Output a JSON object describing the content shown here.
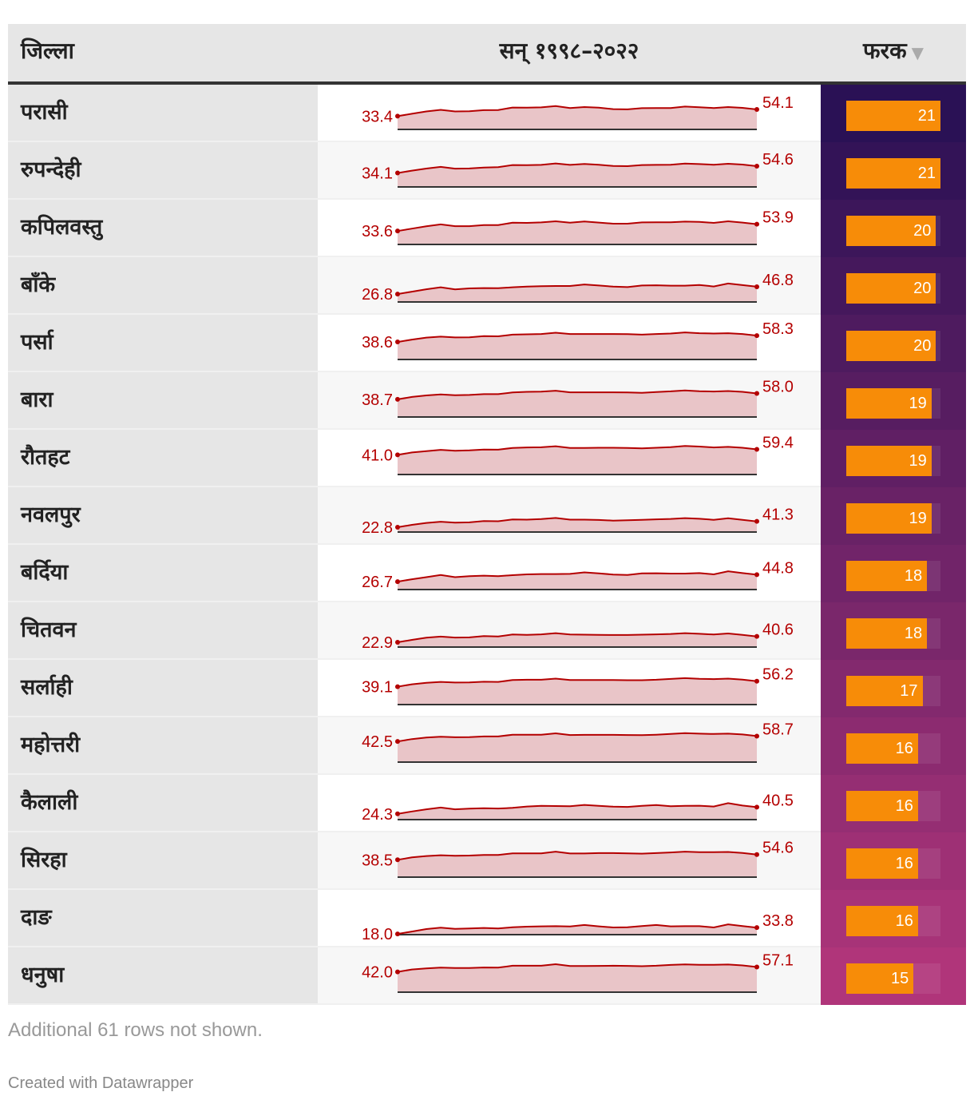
{
  "header": {
    "district": "जिल्ला",
    "years": "सन् १९९८–२०२२",
    "diff": "फरक",
    "sort_icon": "▼"
  },
  "colors": {
    "spark_line": "#b40000",
    "spark_fill": "#e9c5c8",
    "bar": "#f78c08",
    "gradient_top": "#2a1155",
    "gradient_bottom": "#b0357a"
  },
  "chart_data": {
    "type": "table",
    "columns": [
      "जिल्ला",
      "सन् १९९८–२०२२",
      "फरक"
    ],
    "year_range": [
      1998,
      2022
    ],
    "rows": [
      {
        "district": "परासी",
        "start": "33.4",
        "end": "54.1",
        "diff": 21,
        "series": [
          33.4,
          34.2,
          37.0,
          39.0,
          37.0,
          37.2,
          38.6,
          38.8,
          41.8,
          41.6,
          42.0,
          43.6,
          41.2,
          42.4,
          41.6,
          39.8,
          39.6,
          41.0,
          41.2,
          41.2,
          43.0,
          42.2,
          41.2,
          42.4,
          41.4,
          54.1
        ]
      },
      {
        "district": "रुपन्देही",
        "start": "34.1",
        "end": "54.6",
        "diff": 21,
        "series": [
          34.1,
          35.0,
          37.5,
          39.6,
          37.4,
          37.6,
          38.8,
          39.2,
          41.8,
          41.6,
          42.0,
          43.8,
          42.0,
          43.2,
          42.2,
          40.6,
          40.4,
          41.8,
          42.0,
          42.2,
          43.6,
          43.0,
          42.2,
          43.4,
          42.4,
          54.6
        ]
      },
      {
        "district": "कपिलवस्तु",
        "start": "33.6",
        "end": "53.9",
        "diff": 20,
        "series": [
          33.6,
          34.4,
          37.2,
          39.6,
          37.4,
          37.4,
          38.8,
          38.8,
          41.6,
          41.4,
          42.0,
          43.4,
          41.6,
          43.2,
          41.8,
          40.4,
          40.4,
          42.0,
          42.2,
          42.2,
          43.0,
          42.6,
          41.4,
          43.4,
          41.8,
          53.9
        ]
      },
      {
        "district": "बाँके",
        "start": "26.8",
        "end": "46.8",
        "diff": 20,
        "series": [
          26.8,
          27.6,
          30.6,
          33.0,
          30.4,
          31.6,
          32.0,
          31.8,
          33.0,
          33.8,
          34.4,
          34.6,
          34.6,
          36.4,
          35.2,
          33.8,
          33.2,
          35.2,
          35.4,
          35.0,
          35.0,
          35.8,
          34.0,
          37.6,
          35.6,
          46.8
        ]
      },
      {
        "district": "पर्सा",
        "start": "38.6",
        "end": "58.3",
        "diff": 20,
        "series": [
          38.6,
          39.4,
          41.8,
          43.0,
          42.0,
          42.2,
          43.6,
          43.4,
          45.4,
          45.8,
          46.2,
          47.8,
          46.2,
          46.2,
          46.2,
          46.2,
          46.0,
          45.4,
          46.2,
          46.8,
          48.2,
          47.2,
          46.8,
          47.2,
          46.2,
          58.3
        ]
      },
      {
        "district": "बारा",
        "start": "38.7",
        "end": "58.0",
        "diff": 19,
        "series": [
          38.7,
          39.6,
          41.4,
          42.6,
          41.6,
          42.0,
          43.0,
          43.0,
          45.0,
          45.8,
          46.0,
          47.2,
          45.2,
          45.2,
          45.2,
          45.2,
          45.0,
          44.6,
          45.6,
          46.4,
          47.6,
          46.6,
          46.2,
          46.8,
          45.8,
          58.0
        ]
      },
      {
        "district": "रौतहट",
        "start": "41.0",
        "end": "59.4",
        "diff": 19,
        "series": [
          41.0,
          42.0,
          43.6,
          45.2,
          44.2,
          44.6,
          45.6,
          45.4,
          47.6,
          48.2,
          48.4,
          49.6,
          47.6,
          47.6,
          47.8,
          47.8,
          47.6,
          47.0,
          47.8,
          48.6,
          50.0,
          49.2,
          48.2,
          48.8,
          47.8,
          59.4
        ]
      },
      {
        "district": "नवलपुर",
        "start": "22.8",
        "end": "41.3",
        "diff": 19,
        "series": [
          22.8,
          23.8,
          26.2,
          27.6,
          26.4,
          26.8,
          28.4,
          28.2,
          30.4,
          30.2,
          30.8,
          32.2,
          30.2,
          30.2,
          29.8,
          29.0,
          29.4,
          30.0,
          30.6,
          31.0,
          32.0,
          31.2,
          30.0,
          31.8,
          30.0,
          41.3
        ]
      },
      {
        "district": "बर्दिया",
        "start": "26.7",
        "end": "44.8",
        "diff": 18,
        "series": [
          26.7,
          27.6,
          30.2,
          32.8,
          30.2,
          31.4,
          32.0,
          31.4,
          32.6,
          33.6,
          34.0,
          34.0,
          34.2,
          36.0,
          34.8,
          33.4,
          32.8,
          34.8,
          35.0,
          34.6,
          34.6,
          35.2,
          33.6,
          37.4,
          35.2,
          44.8
        ]
      },
      {
        "district": "चितवन",
        "start": "22.9",
        "end": "40.6",
        "diff": 18,
        "series": [
          22.9,
          23.8,
          26.4,
          27.8,
          26.6,
          26.8,
          28.4,
          28.0,
          30.4,
          30.0,
          30.6,
          32.0,
          30.4,
          30.2,
          30.0,
          29.8,
          29.8,
          30.2,
          30.6,
          31.0,
          32.0,
          31.2,
          30.4,
          31.6,
          30.0,
          40.6
        ]
      },
      {
        "district": "सर्लाही",
        "start": "39.1",
        "end": "56.2",
        "diff": 17,
        "series": [
          39.1,
          39.8,
          41.6,
          42.8,
          42.0,
          42.2,
          43.0,
          42.8,
          45.0,
          45.4,
          45.4,
          46.8,
          45.0,
          45.0,
          45.0,
          45.0,
          44.8,
          44.8,
          45.4,
          46.4,
          47.4,
          46.6,
          46.2,
          46.8,
          45.6,
          56.2
        ]
      },
      {
        "district": "महोत्तरी",
        "start": "42.5",
        "end": "58.7",
        "diff": 16,
        "series": [
          42.5,
          43.2,
          45.0,
          46.0,
          45.4,
          45.6,
          46.4,
          46.4,
          48.6,
          48.6,
          48.6,
          50.2,
          48.2,
          48.4,
          48.4,
          48.4,
          48.2,
          48.0,
          48.6,
          49.4,
          50.4,
          49.8,
          49.4,
          49.8,
          48.8,
          58.7
        ]
      },
      {
        "district": "कैलाली",
        "start": "24.3",
        "end": "40.5",
        "diff": 16,
        "series": [
          24.3,
          25.0,
          27.6,
          29.8,
          27.6,
          28.4,
          29.0,
          28.6,
          29.4,
          31.0,
          31.8,
          31.6,
          31.4,
          33.0,
          31.8,
          30.8,
          30.6,
          31.8,
          32.8,
          31.4,
          31.8,
          32.0,
          31.0,
          35.2,
          32.2,
          40.5
        ]
      },
      {
        "district": "सिरहा",
        "start": "38.5",
        "end": "54.6",
        "diff": 16,
        "series": [
          38.5,
          39.2,
          40.8,
          41.8,
          41.2,
          41.4,
          42.2,
          42.2,
          44.2,
          44.2,
          44.2,
          46.2,
          44.0,
          44.0,
          44.4,
          44.4,
          44.2,
          43.8,
          44.4,
          45.2,
          46.2,
          45.6,
          45.6,
          45.8,
          44.6,
          54.6
        ]
      },
      {
        "district": "दाङ",
        "start": "18.0",
        "end": "33.8",
        "diff": 16,
        "series": [
          18.0,
          18.8,
          21.8,
          23.6,
          22.0,
          22.6,
          23.2,
          22.6,
          24.0,
          24.8,
          25.2,
          25.4,
          25.0,
          26.8,
          25.2,
          23.8,
          24.0,
          25.6,
          26.8,
          25.2,
          25.4,
          25.4,
          23.8,
          27.6,
          25.6,
          33.8
        ]
      },
      {
        "district": "धनुषा",
        "start": "42.0",
        "end": "57.1",
        "diff": 15,
        "series": [
          42.0,
          42.8,
          44.2,
          45.0,
          44.6,
          44.6,
          45.2,
          45.0,
          47.4,
          47.4,
          47.4,
          49.2,
          47.0,
          47.0,
          47.2,
          47.4,
          47.2,
          46.8,
          47.4,
          48.4,
          49.0,
          48.6,
          48.6,
          48.8,
          47.8,
          57.1
        ]
      }
    ]
  },
  "footer": {
    "note": "Additional 61 rows not shown.",
    "credit": "Created with Datawrapper"
  }
}
